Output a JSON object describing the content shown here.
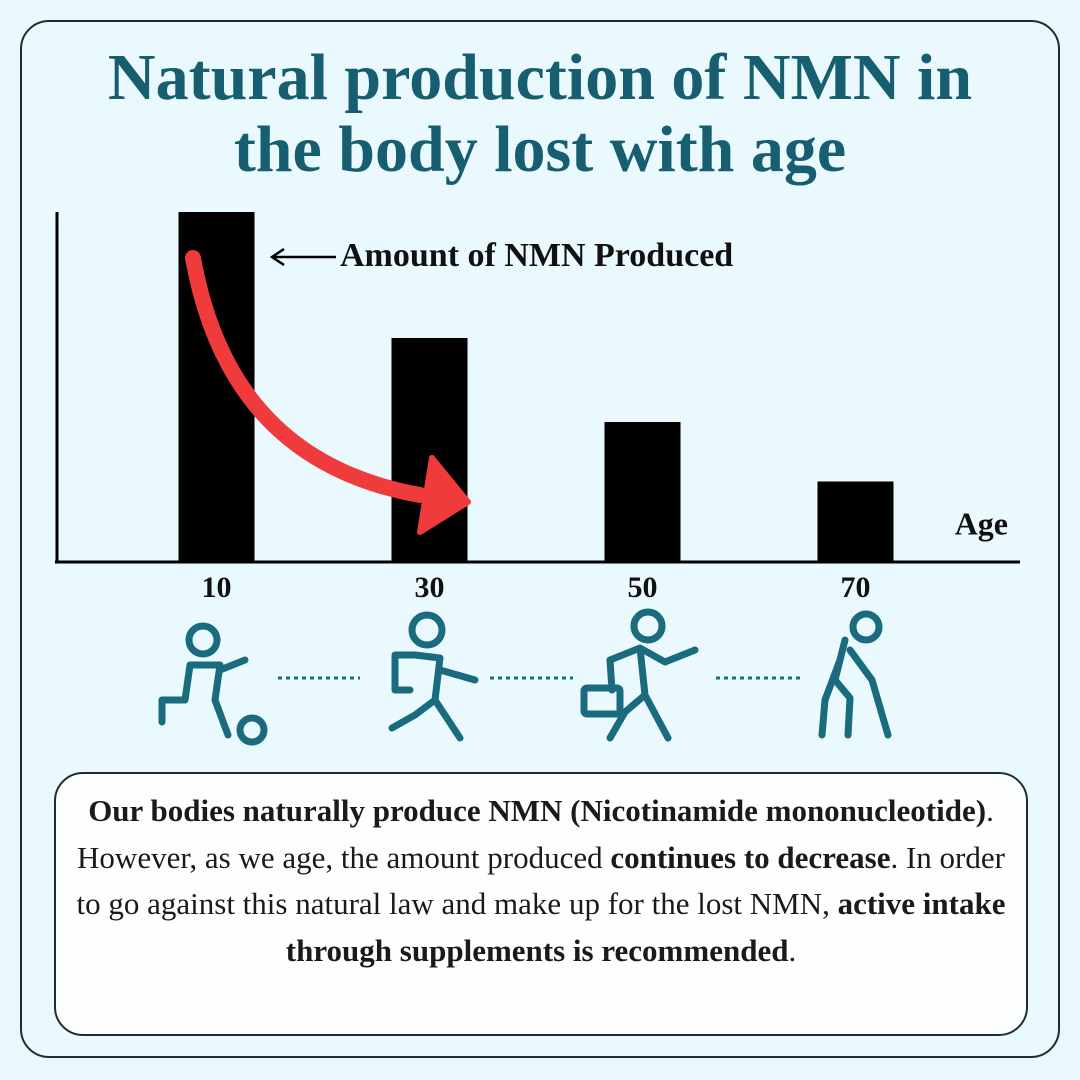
{
  "chart_data": {
    "type": "bar",
    "title": "Natural production of NMN in the body lost with age",
    "annotation": "Amount of NMN Produced",
    "x_label": "Age",
    "categories": [
      "10",
      "30",
      "50",
      "70"
    ],
    "values": [
      100,
      64,
      40,
      23
    ],
    "color": "#000000",
    "ylim": [
      0,
      100
    ],
    "caption": [
      {
        "text": "Our bodies naturally produce NMN (Nicotinamide mononucleotide)",
        "bold": true
      },
      {
        "text": ". However, as we age, the amount produced ",
        "bold": false
      },
      {
        "text": "continues to decrease",
        "bold": true
      },
      {
        "text": ". In order to go against this natural law and make up for the lost NMN, ",
        "bold": false
      },
      {
        "text": "active intake through supplements is recommended",
        "bold": true
      },
      {
        "text": ".",
        "bold": false
      }
    ]
  }
}
